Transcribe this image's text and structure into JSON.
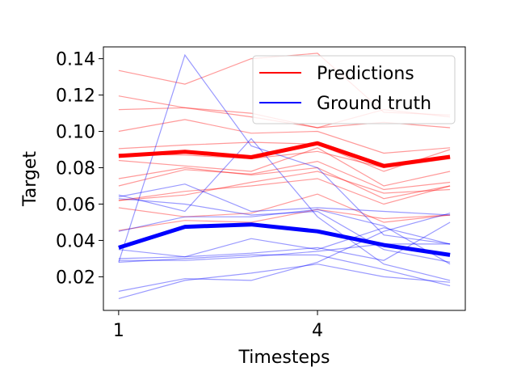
{
  "chart_data": {
    "type": "line",
    "xlabel": "Timesteps",
    "ylabel": "Target",
    "x": [
      1,
      2,
      3,
      4,
      5,
      6
    ],
    "xticks": [
      1,
      4
    ],
    "xtick_labels": [
      "1",
      "4"
    ],
    "xlim": [
      0.77,
      6.23
    ],
    "yticks": [
      0.02,
      0.04,
      0.06,
      0.08,
      0.1,
      0.12,
      0.14
    ],
    "ytick_labels": [
      "0.02",
      "0.04",
      "0.06",
      "0.08",
      "0.10",
      "0.12",
      "0.14"
    ],
    "ylim": [
      0.0015,
      0.1465
    ],
    "grid": false,
    "legend": {
      "position": "top-right",
      "entries": [
        {
          "label": "Predictions",
          "color": "#ff0000"
        },
        {
          "label": "Ground truth",
          "color": "#0000ff"
        }
      ]
    },
    "colors": {
      "predictions": "#ff0000",
      "ground_truth": "#0000ff"
    },
    "series": [
      {
        "group": "predictions",
        "role": "mean",
        "values": [
          0.0865,
          0.0888,
          0.0858,
          0.0935,
          0.081,
          0.086
        ]
      },
      {
        "group": "ground_truth",
        "role": "mean",
        "values": [
          0.036,
          0.0475,
          0.0488,
          0.045,
          0.0375,
          0.032
        ]
      },
      {
        "group": "predictions",
        "role": "sample",
        "values": [
          0.1335,
          0.126,
          0.14,
          0.143,
          0.1105,
          0.109
        ]
      },
      {
        "group": "predictions",
        "role": "sample",
        "values": [
          0.1195,
          0.113,
          0.11,
          0.102,
          0.112,
          0.108
        ]
      },
      {
        "group": "predictions",
        "role": "sample",
        "values": [
          0.112,
          0.113,
          0.108,
          0.102,
          0.105,
          0.102
        ]
      },
      {
        "group": "predictions",
        "role": "sample",
        "values": [
          0.1,
          0.1065,
          0.099,
          0.1,
          0.088,
          0.091
        ]
      },
      {
        "group": "predictions",
        "role": "sample",
        "values": [
          0.0905,
          0.0925,
          0.094,
          0.093,
          0.078,
          0.09
        ]
      },
      {
        "group": "predictions",
        "role": "sample",
        "values": [
          0.0875,
          0.087,
          0.085,
          0.089,
          0.08,
          0.085
        ]
      },
      {
        "group": "predictions",
        "role": "sample",
        "values": [
          0.084,
          0.081,
          0.078,
          0.091,
          0.07,
          0.078
        ]
      },
      {
        "group": "predictions",
        "role": "sample",
        "values": [
          0.07,
          0.079,
          0.0765,
          0.0835,
          0.068,
          0.072
        ]
      },
      {
        "group": "predictions",
        "role": "sample",
        "values": [
          0.074,
          0.08,
          0.076,
          0.08,
          0.063,
          0.07
        ]
      },
      {
        "group": "predictions",
        "role": "sample",
        "values": [
          0.062,
          0.065,
          0.072,
          0.078,
          0.066,
          0.068
        ]
      },
      {
        "group": "predictions",
        "role": "sample",
        "values": [
          0.062,
          0.067,
          0.07,
          0.074,
          0.06,
          0.07
        ]
      },
      {
        "group": "predictions",
        "role": "sample",
        "values": [
          0.058,
          0.053,
          0.055,
          0.0655,
          0.05,
          0.054
        ]
      },
      {
        "group": "predictions",
        "role": "sample",
        "values": [
          0.0455,
          0.051,
          0.05,
          0.057,
          0.052,
          0.054
        ]
      },
      {
        "group": "ground_truth",
        "role": "sample",
        "values": [
          0.028,
          0.142,
          0.092,
          0.08,
          0.043,
          0.038
        ]
      },
      {
        "group": "ground_truth",
        "role": "sample",
        "values": [
          0.065,
          0.056,
          0.096,
          0.053,
          0.027,
          0.018
        ]
      },
      {
        "group": "ground_truth",
        "role": "sample",
        "values": [
          0.064,
          0.071,
          0.056,
          0.058,
          0.056,
          0.054
        ]
      },
      {
        "group": "ground_truth",
        "role": "sample",
        "values": [
          0.063,
          0.06,
          0.054,
          0.056,
          0.035,
          0.028
        ]
      },
      {
        "group": "ground_truth",
        "role": "sample",
        "values": [
          0.045,
          0.053,
          0.053,
          0.057,
          0.048,
          0.027
        ]
      },
      {
        "group": "ground_truth",
        "role": "sample",
        "values": [
          0.035,
          0.031,
          0.041,
          0.035,
          0.047,
          0.038
        ]
      },
      {
        "group": "ground_truth",
        "role": "sample",
        "values": [
          0.03,
          0.031,
          0.033,
          0.036,
          0.029,
          0.05
        ]
      },
      {
        "group": "ground_truth",
        "role": "sample",
        "values": [
          0.029,
          0.029,
          0.031,
          0.034,
          0.038,
          0.038
        ]
      },
      {
        "group": "ground_truth",
        "role": "sample",
        "values": [
          0.012,
          0.019,
          0.018,
          0.028,
          0.045,
          0.055
        ]
      },
      {
        "group": "ground_truth",
        "role": "sample",
        "values": [
          0.008,
          0.018,
          0.022,
          0.027,
          0.02,
          0.017
        ]
      },
      {
        "group": "ground_truth",
        "role": "sample",
        "values": [
          0.028,
          0.03,
          0.032,
          0.032,
          0.024,
          0.015
        ]
      }
    ]
  }
}
